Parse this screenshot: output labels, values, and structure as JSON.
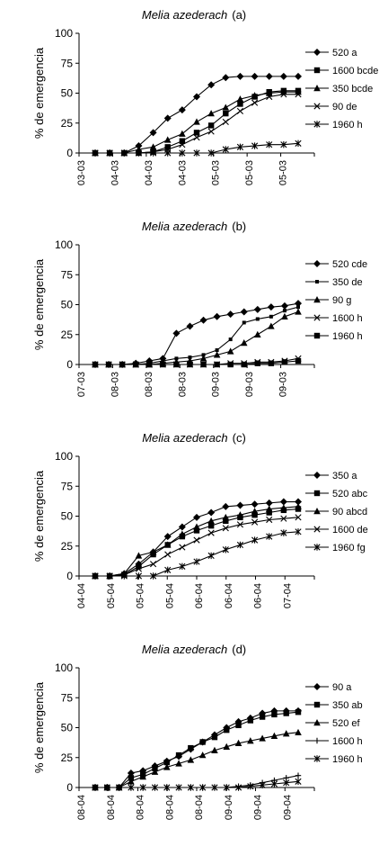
{
  "chart_data": [
    {
      "type": "line",
      "title_species": "Melia azederach",
      "title_suffix": "(a)",
      "ylabel": "% de emergencia",
      "xlabel": "",
      "ylim": [
        0,
        100
      ],
      "yticks": [
        "0",
        "25",
        "50",
        "75",
        "100"
      ],
      "x_tick_labels": [
        "03-03",
        "04-03",
        "04-03",
        "04-03",
        "05-03",
        "05-03",
        "05-03"
      ],
      "legend_position": "right",
      "grid": false,
      "series": [
        {
          "name": "520 a",
          "marker": "diamond",
          "x": [
            1,
            2,
            3,
            4,
            5,
            6,
            7,
            8,
            9,
            10,
            11,
            12,
            13,
            14,
            15
          ],
          "values": [
            0,
            0,
            0,
            6,
            17,
            29,
            36,
            47,
            57,
            63,
            64,
            64,
            64,
            64,
            64
          ]
        },
        {
          "name": "1600 bcde",
          "marker": "square",
          "x": [
            1,
            2,
            3,
            4,
            5,
            6,
            7,
            8,
            9,
            10,
            11,
            12,
            13,
            14,
            15
          ],
          "values": [
            0,
            0,
            0,
            0,
            1,
            5,
            10,
            17,
            23,
            33,
            41,
            47,
            51,
            52,
            52
          ]
        },
        {
          "name": "350 bcde",
          "marker": "triangle",
          "x": [
            1,
            2,
            3,
            4,
            5,
            6,
            7,
            8,
            9,
            10,
            11,
            12,
            13,
            14,
            15
          ],
          "values": [
            0,
            0,
            0,
            3,
            5,
            11,
            16,
            26,
            33,
            38,
            45,
            48,
            50,
            51,
            51
          ]
        },
        {
          "name": "90 de",
          "marker": "x",
          "x": [
            1,
            2,
            3,
            4,
            5,
            6,
            7,
            8,
            9,
            10,
            11,
            12,
            13,
            14,
            15
          ],
          "values": [
            0,
            0,
            0,
            0,
            1,
            3,
            7,
            13,
            18,
            26,
            35,
            42,
            47,
            49,
            49
          ]
        },
        {
          "name": "1960 h",
          "marker": "star",
          "x": [
            1,
            2,
            3,
            4,
            5,
            6,
            7,
            8,
            9,
            10,
            11,
            12,
            13,
            14,
            15
          ],
          "values": [
            0,
            0,
            0,
            0,
            0,
            0,
            0,
            0,
            0,
            3,
            5,
            6,
            7,
            7,
            8
          ]
        }
      ]
    },
    {
      "type": "line",
      "title_species": "Melia azederach",
      "title_suffix": "(b)",
      "ylabel": "% de emergencia",
      "xlabel": "",
      "ylim": [
        0,
        100
      ],
      "yticks": [
        "0",
        "25",
        "50",
        "75",
        "100"
      ],
      "x_tick_labels": [
        "07-03",
        "08-03",
        "08-03",
        "08-03",
        "09-03",
        "09-03",
        "09-03"
      ],
      "legend_position": "right",
      "grid": false,
      "series": [
        {
          "name": "520 cde",
          "marker": "diamond",
          "x": [
            1,
            2,
            3,
            4,
            5,
            6,
            7,
            8,
            9,
            10,
            11,
            12,
            13,
            14,
            15,
            16
          ],
          "values": [
            0,
            0,
            0,
            1,
            3,
            5,
            26,
            32,
            37,
            40,
            42,
            44,
            46,
            48,
            49,
            51
          ]
        },
        {
          "name": "350 de",
          "marker": "small-square",
          "x": [
            1,
            2,
            3,
            4,
            5,
            6,
            7,
            8,
            9,
            10,
            11,
            12,
            13,
            14,
            15,
            16
          ],
          "values": [
            0,
            0,
            0,
            0,
            1,
            3,
            5,
            6,
            8,
            12,
            21,
            35,
            38,
            40,
            45,
            48
          ]
        },
        {
          "name": "90 g",
          "marker": "triangle",
          "x": [
            1,
            2,
            3,
            4,
            5,
            6,
            7,
            8,
            9,
            10,
            11,
            12,
            13,
            14,
            15,
            16
          ],
          "values": [
            0,
            0,
            0,
            0,
            0,
            1,
            2,
            3,
            5,
            8,
            11,
            18,
            25,
            32,
            40,
            44
          ]
        },
        {
          "name": "1600 h",
          "marker": "x",
          "x": [
            1,
            2,
            3,
            4,
            5,
            6,
            7,
            8,
            9,
            10,
            11,
            12,
            13,
            14,
            15,
            16
          ],
          "values": [
            0,
            0,
            0,
            0,
            0,
            0,
            0,
            0,
            0,
            0,
            1,
            1,
            2,
            2,
            3,
            5
          ]
        },
        {
          "name": "1960 h",
          "marker": "square",
          "x": [
            1,
            2,
            3,
            4,
            5,
            6,
            7,
            8,
            9,
            10,
            11,
            12,
            13,
            14,
            15,
            16
          ],
          "values": [
            0,
            0,
            0,
            0,
            0,
            0,
            0,
            0,
            0,
            0,
            0,
            0,
            1,
            1,
            2,
            3
          ]
        }
      ]
    },
    {
      "type": "line",
      "title_species": "Melia azederach",
      "title_suffix": "(c)",
      "ylabel": "% de emergencia",
      "xlabel": "",
      "ylim": [
        0,
        100
      ],
      "yticks": [
        "0",
        "25",
        "50",
        "75",
        "100"
      ],
      "x_tick_labels": [
        "04-04",
        "05-04",
        "05-04",
        "05-04",
        "06-04",
        "06-04",
        "06-04",
        "07-04"
      ],
      "legend_position": "right",
      "grid": false,
      "series": [
        {
          "name": "350 a",
          "marker": "diamond",
          "x": [
            1,
            2,
            3,
            4,
            5,
            6,
            7,
            8,
            9,
            10,
            11,
            12,
            13,
            14,
            15
          ],
          "values": [
            0,
            0,
            2,
            10,
            20,
            33,
            41,
            49,
            53,
            58,
            59,
            60,
            61,
            62,
            62
          ]
        },
        {
          "name": "520 abc",
          "marker": "square",
          "x": [
            1,
            2,
            3,
            4,
            5,
            6,
            7,
            8,
            9,
            10,
            11,
            12,
            13,
            14,
            15
          ],
          "values": [
            0,
            0,
            1,
            8,
            18,
            26,
            33,
            38,
            42,
            46,
            49,
            51,
            53,
            55,
            56
          ]
        },
        {
          "name": "90 abcd",
          "marker": "triangle",
          "x": [
            1,
            2,
            3,
            4,
            5,
            6,
            7,
            8,
            9,
            10,
            11,
            12,
            13,
            14,
            15
          ],
          "values": [
            0,
            0,
            2,
            17,
            20,
            26,
            35,
            41,
            46,
            49,
            51,
            54,
            56,
            57,
            58
          ]
        },
        {
          "name": "1600 de",
          "marker": "x",
          "x": [
            1,
            2,
            3,
            4,
            5,
            6,
            7,
            8,
            9,
            10,
            11,
            12,
            13,
            14,
            15
          ],
          "values": [
            0,
            0,
            1,
            6,
            10,
            18,
            24,
            30,
            36,
            40,
            43,
            45,
            47,
            48,
            49
          ]
        },
        {
          "name": "1960 fg",
          "marker": "star",
          "x": [
            1,
            2,
            3,
            4,
            5,
            6,
            7,
            8,
            9,
            10,
            11,
            12,
            13,
            14,
            15
          ],
          "values": [
            0,
            0,
            0,
            0,
            0,
            5,
            8,
            12,
            17,
            22,
            26,
            30,
            33,
            36,
            37
          ]
        }
      ]
    },
    {
      "type": "line",
      "title_species": "Melia azederach",
      "title_suffix": "(d)",
      "ylabel": "% de emergencia",
      "xlabel": "",
      "ylim": [
        0,
        100
      ],
      "yticks": [
        "0",
        "25",
        "50",
        "75",
        "100"
      ],
      "x_tick_labels": [
        "08-04",
        "08-04",
        "08-04",
        "08-04",
        "08-04",
        "09-04",
        "09-04",
        "09-04"
      ],
      "legend_position": "right",
      "grid": false,
      "series": [
        {
          "name": "90 a",
          "marker": "diamond",
          "x": [
            1,
            2,
            3,
            4,
            5,
            6,
            7,
            8,
            9,
            10,
            11,
            12,
            13,
            14,
            15,
            16,
            17,
            18
          ],
          "values": [
            0,
            0,
            0,
            12,
            14,
            18,
            22,
            26,
            32,
            38,
            44,
            50,
            55,
            58,
            62,
            64,
            64,
            64
          ]
        },
        {
          "name": "350 ab",
          "marker": "square",
          "x": [
            1,
            2,
            3,
            4,
            5,
            6,
            7,
            8,
            9,
            10,
            11,
            12,
            13,
            14,
            15,
            16,
            17,
            18
          ],
          "values": [
            0,
            0,
            0,
            8,
            11,
            16,
            21,
            27,
            33,
            38,
            42,
            48,
            52,
            56,
            59,
            61,
            62,
            63
          ]
        },
        {
          "name": "520 ef",
          "marker": "triangle",
          "x": [
            1,
            2,
            3,
            4,
            5,
            6,
            7,
            8,
            9,
            10,
            11,
            12,
            13,
            14,
            15,
            16,
            17,
            18
          ],
          "values": [
            0,
            0,
            0,
            5,
            9,
            13,
            17,
            20,
            23,
            27,
            31,
            34,
            37,
            39,
            41,
            43,
            45,
            46
          ]
        },
        {
          "name": "1600 h",
          "marker": "plus",
          "x": [
            1,
            2,
            3,
            4,
            5,
            6,
            7,
            8,
            9,
            10,
            11,
            12,
            13,
            14,
            15,
            16,
            17,
            18
          ],
          "values": [
            0,
            0,
            0,
            0,
            0,
            0,
            0,
            0,
            0,
            0,
            0,
            0,
            1,
            2,
            4,
            6,
            8,
            10
          ]
        },
        {
          "name": "1960 h",
          "marker": "star",
          "x": [
            1,
            2,
            3,
            4,
            5,
            6,
            7,
            8,
            9,
            10,
            11,
            12,
            13,
            14,
            15,
            16,
            17,
            18
          ],
          "values": [
            0,
            0,
            0,
            0,
            0,
            0,
            0,
            0,
            0,
            0,
            0,
            0,
            0,
            1,
            2,
            3,
            4,
            5
          ]
        }
      ]
    }
  ]
}
